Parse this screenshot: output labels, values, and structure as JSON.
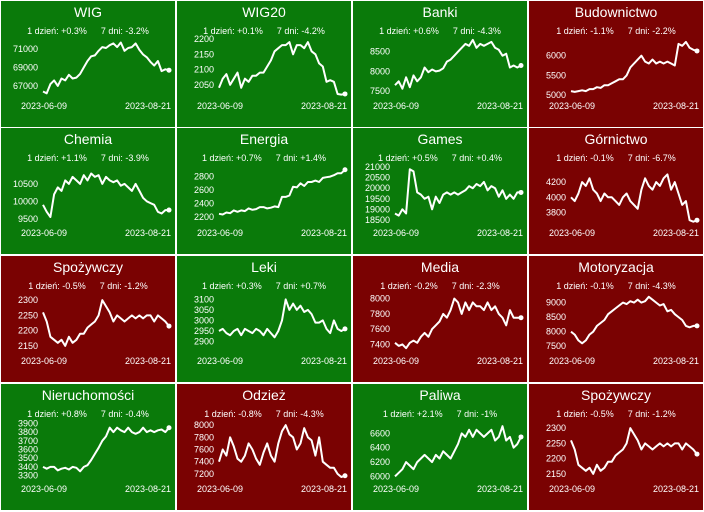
{
  "chart_data": [
    {
      "type": "line",
      "title": "WIG",
      "change_1d": "1 dzień: +0.3%",
      "change_7d": "7 dni: -3.2%",
      "trend": "up",
      "yticks": [
        67000,
        69000,
        71000
      ],
      "ylim": [
        65800,
        72400
      ],
      "x_start": "2023-06-09",
      "x_end": "2023-08-21",
      "values": [
        66400,
        66200,
        67200,
        67600,
        67000,
        67800,
        67600,
        68200,
        67800,
        67900,
        68300,
        69000,
        69700,
        70200,
        70300,
        70800,
        71200,
        71100,
        71400,
        71600,
        71200,
        71700,
        70800,
        71100,
        71200,
        71600,
        70900,
        70400,
        70100,
        69600,
        69200,
        69700,
        68600,
        68800,
        68700
      ]
    },
    {
      "type": "line",
      "title": "WIG20",
      "change_1d": "1 dzień: +0.1%",
      "change_7d": "7 dni: -4.2%",
      "trend": "up",
      "yticks": [
        2050,
        2100,
        2150,
        2200
      ],
      "ylim": [
        2010,
        2210
      ],
      "x_start": "2023-06-09",
      "x_end": "2023-08-21",
      "values": [
        2040,
        2070,
        2085,
        2050,
        2070,
        2090,
        2040,
        2070,
        2060,
        2080,
        2080,
        2090,
        2090,
        2110,
        2130,
        2160,
        2170,
        2180,
        2180,
        2190,
        2150,
        2180,
        2180,
        2170,
        2190,
        2160,
        2150,
        2120,
        2110,
        2060,
        2065,
        2060,
        2020,
        2018,
        2020
      ]
    },
    {
      "type": "line",
      "title": "Banki",
      "change_1d": "1 dzień: +0.6%",
      "change_7d": "7 dni: -4.3%",
      "trend": "up",
      "yticks": [
        7500,
        8000,
        8500
      ],
      "ylim": [
        7350,
        8900
      ],
      "x_start": "2023-06-09",
      "x_end": "2023-08-21",
      "values": [
        7650,
        7750,
        7560,
        7850,
        7600,
        7900,
        7750,
        7850,
        8100,
        7980,
        8050,
        8000,
        8020,
        8080,
        8250,
        8300,
        8400,
        8500,
        8600,
        8700,
        8650,
        8800,
        8600,
        8700,
        8650,
        8700,
        8750,
        8600,
        8550,
        8400,
        8450,
        8100,
        8150,
        8100,
        8150
      ]
    },
    {
      "type": "line",
      "title": "Budownictwo",
      "change_1d": "1 dzień: -1.1%",
      "change_7d": "7 dni: -2.2%",
      "trend": "down",
      "yticks": [
        5000,
        5500,
        6000
      ],
      "ylim": [
        4950,
        6500
      ],
      "x_start": "2023-06-09",
      "x_end": "2023-08-21",
      "values": [
        5100,
        5080,
        5100,
        5120,
        5100,
        5150,
        5150,
        5200,
        5180,
        5250,
        5250,
        5300,
        5350,
        5400,
        5400,
        5500,
        5700,
        5800,
        5900,
        6000,
        5850,
        5800,
        5900,
        5800,
        5850,
        5800,
        5850,
        5800,
        5750,
        6300,
        6250,
        6350,
        6200,
        6150,
        6120
      ]
    },
    {
      "type": "line",
      "title": "Chemia",
      "change_1d": "1 dzień: +1.1%",
      "change_7d": "7 dni: -3.9%",
      "trend": "up",
      "yticks": [
        9500,
        10000,
        10500
      ],
      "ylim": [
        9350,
        11100
      ],
      "x_start": "2023-06-09",
      "x_end": "2023-08-21",
      "values": [
        9900,
        9700,
        9550,
        10200,
        10400,
        10300,
        10600,
        10500,
        10700,
        10600,
        10500,
        10750,
        10600,
        10800,
        10700,
        10750,
        10500,
        10700,
        10600,
        10550,
        10600,
        10450,
        10500,
        10400,
        10300,
        10500,
        10300,
        10100,
        10000,
        9950,
        9900,
        9700,
        9650,
        9750,
        9750
      ]
    },
    {
      "type": "line",
      "title": "Energia",
      "change_1d": "1 dzień: +0.7%",
      "change_7d": "7 dni: +1.4%",
      "trend": "up",
      "yticks": [
        2200,
        2400,
        2600,
        2800
      ],
      "ylim": [
        2100,
        3000
      ],
      "x_start": "2023-06-09",
      "x_end": "2023-08-21",
      "values": [
        2250,
        2240,
        2270,
        2260,
        2300,
        2280,
        2300,
        2290,
        2330,
        2310,
        2320,
        2350,
        2350,
        2330,
        2340,
        2360,
        2350,
        2500,
        2500,
        2520,
        2650,
        2640,
        2700,
        2660,
        2720,
        2720,
        2740,
        2720,
        2780,
        2790,
        2800,
        2820,
        2850,
        2850,
        2900
      ]
    },
    {
      "type": "line",
      "title": "Games",
      "change_1d": "1 dzień: +0.5%",
      "change_7d": "7 dni: +0.4%",
      "trend": "up",
      "yticks": [
        18500,
        19000,
        19500,
        20000,
        20500,
        21000
      ],
      "ylim": [
        18300,
        21200
      ],
      "x_start": "2023-06-09",
      "x_end": "2023-08-21",
      "values": [
        18800,
        18700,
        19000,
        18800,
        20900,
        20800,
        19800,
        19700,
        19500,
        19600,
        19000,
        19600,
        19300,
        19700,
        19800,
        19700,
        19800,
        19700,
        19800,
        19900,
        20100,
        20000,
        20200,
        20100,
        20300,
        19900,
        20100,
        20000,
        19600,
        19900,
        19500,
        19700,
        19500,
        19800,
        19800
      ]
    },
    {
      "type": "line",
      "title": "Górnictwo",
      "change_1d": "1 dzień: -0.1%",
      "change_7d": "7 dni: -6.7%",
      "trend": "down",
      "yticks": [
        3800,
        4000,
        4200
      ],
      "ylim": [
        3650,
        4450
      ],
      "x_start": "2023-06-09",
      "x_end": "2023-08-21",
      "values": [
        4000,
        3950,
        4050,
        4200,
        4150,
        4250,
        4100,
        4050,
        3950,
        4050,
        4000,
        4000,
        3950,
        3900,
        4000,
        4050,
        3950,
        3900,
        3850,
        4100,
        4250,
        4150,
        4100,
        4200,
        4150,
        4250,
        4300,
        4100,
        4200,
        4050,
        3900,
        3950,
        3700,
        3680,
        3700
      ]
    },
    {
      "type": "line",
      "title": "Spożywczy",
      "change_1d": "1 dzień: -0.5%",
      "change_7d": "7 dni: -1.2%",
      "trend": "down",
      "yticks": [
        2150,
        2200,
        2250,
        2300
      ],
      "ylim": [
        2130,
        2330
      ],
      "x_start": "2023-06-09",
      "x_end": "2023-08-21",
      "values": [
        2260,
        2230,
        2180,
        2170,
        2160,
        2170,
        2150,
        2180,
        2160,
        2170,
        2190,
        2190,
        2210,
        2220,
        2230,
        2250,
        2300,
        2280,
        2260,
        2230,
        2250,
        2240,
        2230,
        2240,
        2250,
        2240,
        2250,
        2240,
        2250,
        2250,
        2230,
        2250,
        2240,
        2230,
        2215
      ]
    },
    {
      "type": "line",
      "title": "Leki",
      "change_1d": "1 dzień: +0.3%",
      "change_7d": "7 dni: +0.7%",
      "trend": "up",
      "yticks": [
        2900,
        2950,
        3000,
        3050,
        3100
      ],
      "ylim": [
        2850,
        3140
      ],
      "x_start": "2023-06-09",
      "x_end": "2023-08-21",
      "values": [
        2950,
        2960,
        2940,
        2930,
        2950,
        2960,
        2930,
        2960,
        2950,
        2940,
        2960,
        2950,
        2930,
        2960,
        2940,
        2920,
        2950,
        3000,
        3100,
        3050,
        3080,
        3050,
        3070,
        3040,
        3050,
        3030,
        2990,
        2990,
        3000,
        2960,
        2940,
        3000,
        2960,
        2950,
        2960
      ]
    },
    {
      "type": "line",
      "title": "Media",
      "change_1d": "1 dzień: -0.2%",
      "change_7d": "7 dni: -2.3%",
      "trend": "down",
      "yticks": [
        7400,
        7600,
        7800,
        8000
      ],
      "ylim": [
        7300,
        8100
      ],
      "x_start": "2023-06-09",
      "x_end": "2023-08-21",
      "values": [
        7420,
        7380,
        7400,
        7350,
        7420,
        7450,
        7420,
        7500,
        7550,
        7500,
        7600,
        7650,
        7700,
        7800,
        7750,
        7850,
        8000,
        7950,
        7800,
        7950,
        7850,
        7950,
        7900,
        7900,
        7850,
        7950,
        7850,
        7900,
        7800,
        7750,
        7650,
        7850,
        7750,
        7750,
        7750
      ]
    },
    {
      "type": "line",
      "title": "Motoryzacja",
      "change_1d": "1 dzień: -0.1%",
      "change_7d": "7 dni: -4.3%",
      "trend": "down",
      "yticks": [
        7500,
        8000,
        8500,
        9000
      ],
      "ylim": [
        7300,
        9400
      ],
      "x_start": "2023-06-09",
      "x_end": "2023-08-21",
      "values": [
        8000,
        7900,
        7700,
        7600,
        7700,
        7900,
        8000,
        8200,
        8300,
        8400,
        8600,
        8700,
        8800,
        8900,
        9000,
        8950,
        9050,
        9000,
        9100,
        9000,
        9050,
        9200,
        9100,
        9000,
        8900,
        8950,
        8700,
        8750,
        8600,
        8500,
        8400,
        8200,
        8150,
        8200,
        8200
      ]
    },
    {
      "type": "line",
      "title": "Nieruchomości",
      "change_1d": "1 dzień: +0.8%",
      "change_7d": "7 dni: -0.4%",
      "trend": "up",
      "yticks": [
        3300,
        3400,
        3500,
        3600,
        3700,
        3800,
        3900
      ],
      "ylim": [
        3250,
        3950
      ],
      "x_start": "2023-06-09",
      "x_end": "2023-08-21",
      "values": [
        3400,
        3380,
        3400,
        3400,
        3360,
        3380,
        3390,
        3370,
        3400,
        3390,
        3350,
        3400,
        3420,
        3480,
        3550,
        3620,
        3700,
        3750,
        3850,
        3800,
        3850,
        3820,
        3800,
        3850,
        3800,
        3780,
        3800,
        3850,
        3800,
        3820,
        3800,
        3820,
        3830,
        3800,
        3850
      ]
    },
    {
      "type": "line",
      "title": "Odzież",
      "change_1d": "1 dzień: -0.8%",
      "change_7d": "7 dni: -4.3%",
      "trend": "down",
      "yticks": [
        7200,
        7400,
        7600,
        7800,
        8000
      ],
      "ylim": [
        7100,
        8100
      ],
      "x_start": "2023-06-09",
      "x_end": "2023-08-21",
      "values": [
        7400,
        7600,
        7500,
        7800,
        7650,
        7450,
        7400,
        7500,
        7700,
        7600,
        7450,
        7350,
        7550,
        7700,
        7500,
        7400,
        7700,
        7900,
        8000,
        7850,
        7800,
        7600,
        7700,
        7950,
        7800,
        7750,
        7500,
        7800,
        7400,
        7350,
        7300,
        7300,
        7200,
        7150,
        7170
      ]
    },
    {
      "type": "line",
      "title": "Paliwa",
      "change_1d": "1 dzień: +2.1%",
      "change_7d": "7 dni: -1%",
      "trend": "up",
      "yticks": [
        6000,
        6200,
        6400,
        6600
      ],
      "ylim": [
        5950,
        6800
      ],
      "x_start": "2023-06-09",
      "x_end": "2023-08-21",
      "values": [
        6000,
        6050,
        6100,
        6200,
        6150,
        6100,
        6200,
        6250,
        6300,
        6250,
        6200,
        6300,
        6250,
        6350,
        6300,
        6250,
        6350,
        6450,
        6600,
        6550,
        6650,
        6550,
        6650,
        6600,
        6550,
        6600,
        6650,
        6500,
        6550,
        6700,
        6500,
        6550,
        6400,
        6450,
        6550
      ]
    },
    {
      "type": "line",
      "title": "Spożywczy",
      "change_1d": "1 dzień: -0.5%",
      "change_7d": "7 dni: -1.2%",
      "trend": "down",
      "yticks": [
        2150,
        2200,
        2250,
        2300
      ],
      "ylim": [
        2130,
        2330
      ],
      "x_start": "2023-06-09",
      "x_end": "2023-08-21",
      "values": [
        2260,
        2230,
        2180,
        2170,
        2160,
        2170,
        2150,
        2180,
        2160,
        2170,
        2190,
        2190,
        2210,
        2220,
        2230,
        2250,
        2300,
        2280,
        2260,
        2230,
        2250,
        2240,
        2230,
        2240,
        2250,
        2240,
        2250,
        2240,
        2250,
        2250,
        2230,
        2250,
        2240,
        2230,
        2215
      ]
    }
  ],
  "colors": {
    "up": "#0a7a0a",
    "down": "#7a0202",
    "line": "#ffffff",
    "text": "#ffffff",
    "border": "#ffffff"
  }
}
